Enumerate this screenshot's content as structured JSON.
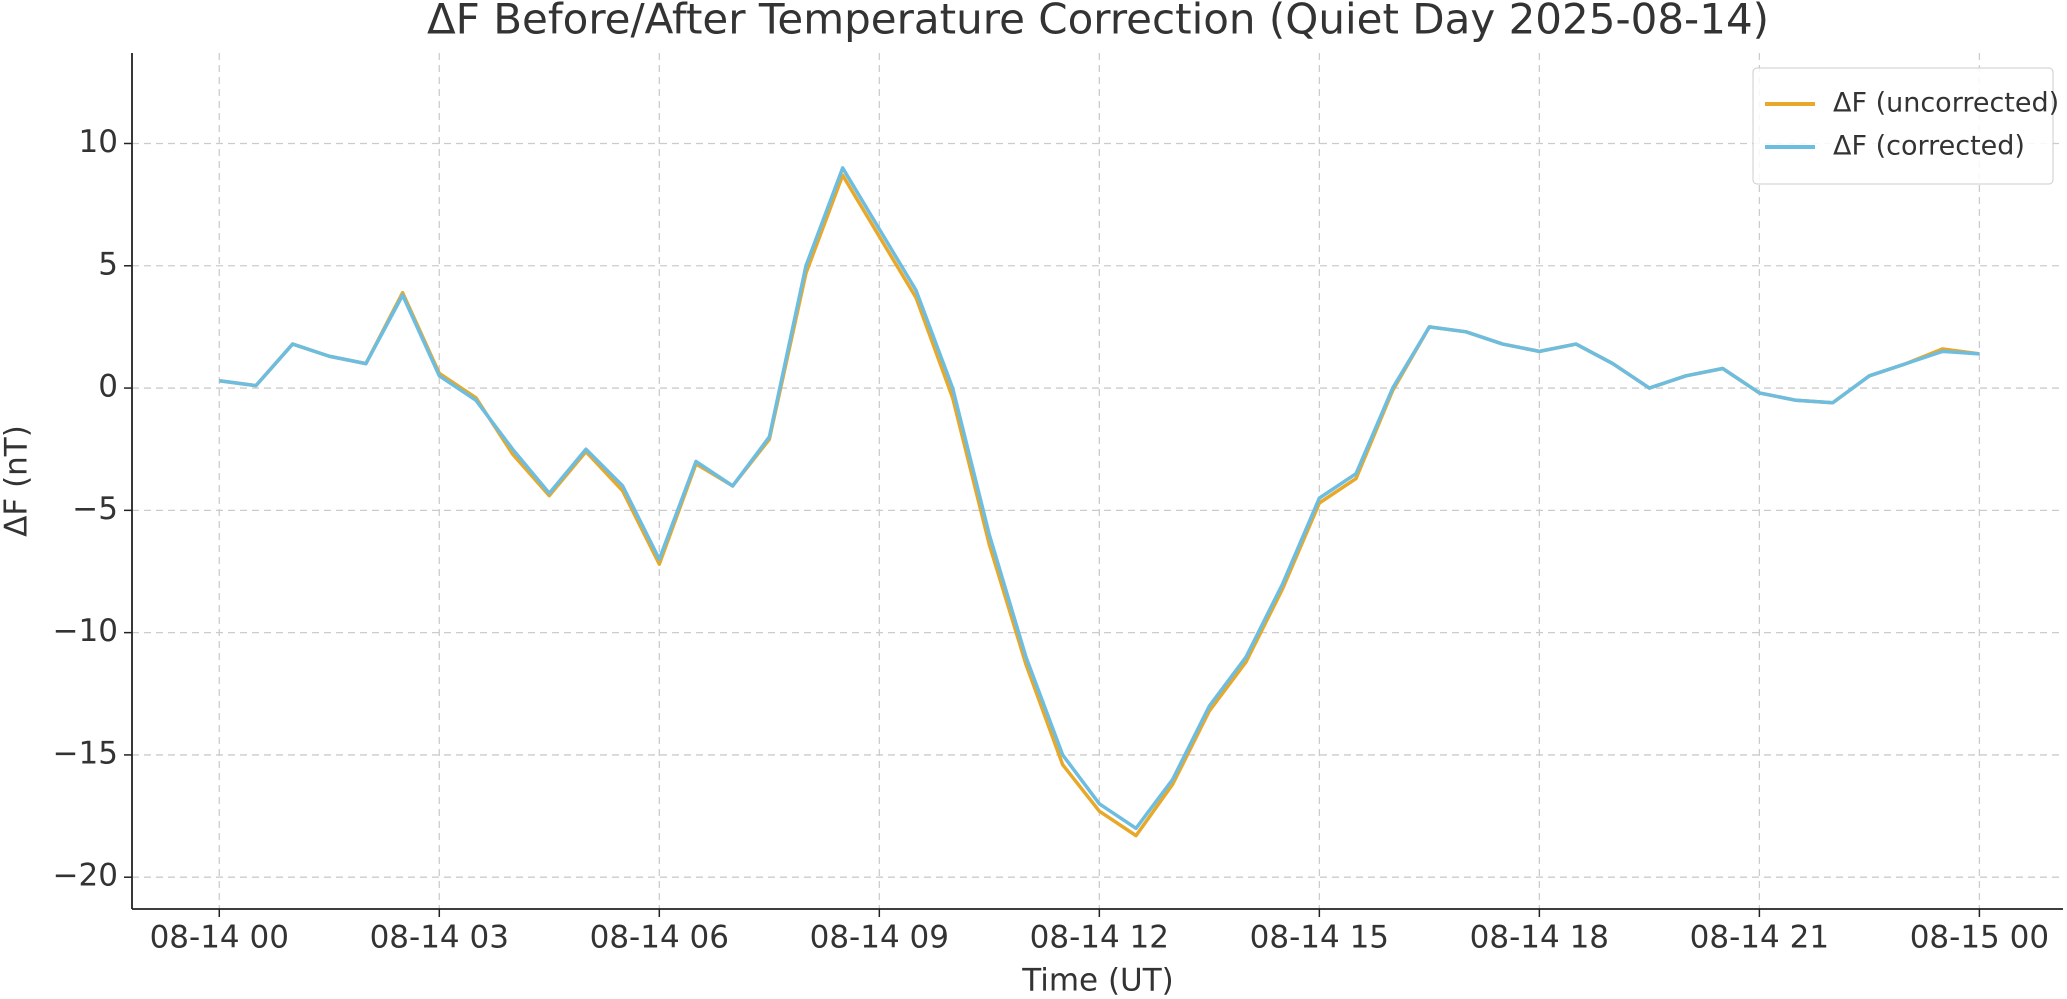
{
  "chart_data": {
    "type": "line",
    "title": "ΔF Before/After Temperature Correction (Quiet Day 2025-08-14)",
    "x_label": "Time (UT)",
    "y_label": "ΔF (nT)",
    "x": [
      0,
      0.5,
      1,
      1.5,
      2,
      2.5,
      3,
      3.5,
      4,
      4.5,
      5,
      5.5,
      6,
      6.5,
      7,
      7.5,
      8,
      8.5,
      9,
      9.5,
      10,
      10.5,
      11,
      11.5,
      12,
      12.5,
      13,
      13.5,
      14,
      14.5,
      15,
      15.5,
      16,
      16.5,
      17,
      17.5,
      18,
      18.5,
      19,
      19.5,
      20,
      20.5,
      21,
      21.5,
      22,
      22.5,
      23,
      23.5,
      24
    ],
    "series": [
      {
        "name": "ΔF (uncorrected)",
        "color": "#e8a82a",
        "values": [
          0.3,
          0.1,
          1.8,
          1.3,
          1.0,
          3.9,
          0.6,
          -0.4,
          -2.7,
          -4.4,
          -2.6,
          -4.2,
          -7.2,
          -3.1,
          -4.0,
          -2.1,
          4.7,
          8.7,
          6.2,
          3.7,
          -0.4,
          -6.4,
          -11.3,
          -15.4,
          -17.3,
          -18.3,
          -16.2,
          -13.2,
          -11.2,
          -8.2,
          -4.7,
          -3.7,
          -0.1,
          2.5,
          2.3,
          1.8,
          1.5,
          1.8,
          1.0,
          0.0,
          0.5,
          0.8,
          -0.2,
          -0.5,
          -0.6,
          0.5,
          1.0,
          1.6,
          1.4
        ]
      },
      {
        "name": "ΔF (corrected)",
        "color": "#6dbde0",
        "values": [
          0.3,
          0.1,
          1.8,
          1.3,
          1.0,
          3.8,
          0.5,
          -0.5,
          -2.5,
          -4.3,
          -2.5,
          -4.0,
          -7.0,
          -3.0,
          -4.0,
          -2.0,
          5.0,
          9.0,
          6.5,
          4.0,
          0.0,
          -6.0,
          -11.0,
          -15.0,
          -17.0,
          -18.0,
          -16.0,
          -13.0,
          -11.0,
          -8.0,
          -4.5,
          -3.5,
          0.0,
          2.5,
          2.3,
          1.8,
          1.5,
          1.8,
          1.0,
          0.0,
          0.5,
          0.8,
          -0.2,
          -0.5,
          -0.6,
          0.5,
          1.0,
          1.5,
          1.4
        ]
      }
    ],
    "xlim": [
      -1.19,
      25.14
    ],
    "xticks": [
      {
        "value": 0,
        "label": "08-14 00"
      },
      {
        "value": 3,
        "label": "08-14 03"
      },
      {
        "value": 6,
        "label": "08-14 06"
      },
      {
        "value": 9,
        "label": "08-14 09"
      },
      {
        "value": 12,
        "label": "08-14 12"
      },
      {
        "value": 15,
        "label": "08-14 15"
      },
      {
        "value": 18,
        "label": "08-14 18"
      },
      {
        "value": 21,
        "label": "08-14 21"
      },
      {
        "value": 24,
        "label": "08-15 00"
      }
    ],
    "ylim": [
      -21.3,
      13.7
    ],
    "yticks": [
      {
        "value": -20,
        "label": "−20"
      },
      {
        "value": -15,
        "label": "−15"
      },
      {
        "value": -10,
        "label": "−10"
      },
      {
        "value": -5,
        "label": "−5"
      },
      0,
      5,
      10
    ],
    "grid": true,
    "legend": "upper right"
  }
}
